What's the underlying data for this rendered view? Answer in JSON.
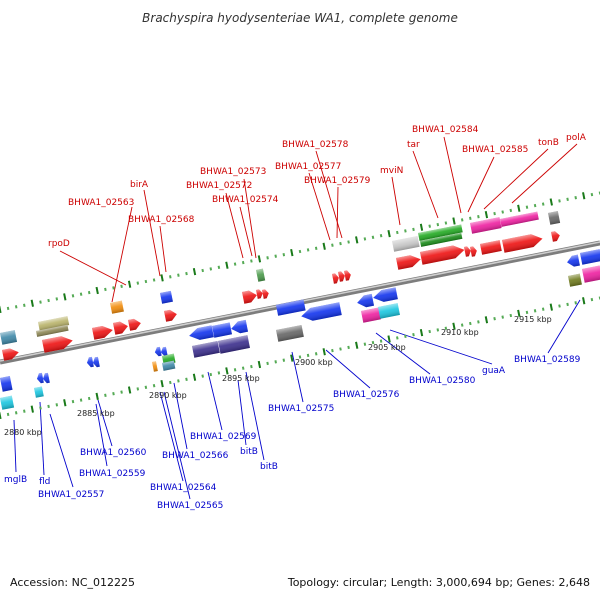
{
  "title": "Brachyspira hyodysenteriae WA1, complete genome",
  "footer": {
    "accession": "Accession: NC_012225",
    "summary": "Topology: circular; Length: 3,000,694 bp; Genes: 2,648"
  },
  "colors": {
    "top_label": "#cc0000",
    "bottom_label": "#0000cc",
    "backbone": "#8c8c8c",
    "tick_dark": "#1a7a1a",
    "tick_light": "#55aa55"
  },
  "kbp_labels": [
    "2880 kbp",
    "2885 kbp",
    "2890 kbp",
    "2895 kbp",
    "2900 kbp",
    "2905 kbp",
    "2910 kbp",
    "2915 kbp"
  ],
  "top_labels": [
    "rpoD",
    "BHWA1_02563",
    "birA",
    "BHWA1_02568",
    "BHWA1_02573",
    "BHWA1_02572",
    "BHWA1_02574",
    "BHWA1_02578",
    "BHWA1_02577",
    "BHWA1_02579",
    "mviN",
    "tar",
    "BHWA1_02584",
    "BHWA1_02585",
    "tonB",
    "polA"
  ],
  "bottom_labels": [
    "mglB",
    "fld",
    "BHWA1_02557",
    "BHWA1_02560",
    "BHWA1_02559",
    "BHWA1_02564",
    "BHWA1_02565",
    "BHWA1_02566",
    "BHWA1_02569",
    "bitB",
    "bitB",
    "BHWA1_02575",
    "BHWA1_02576",
    "BHWA1_02580",
    "guaA",
    "BHWA1_02589"
  ]
}
